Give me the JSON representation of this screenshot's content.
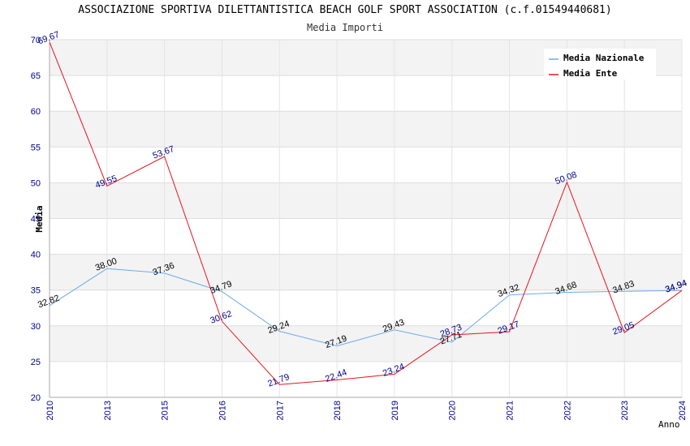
{
  "chart_data": {
    "type": "line",
    "title": "ASSOCIAZIONE SPORTIVA DILETTANTISTICA BEACH GOLF SPORT ASSOCIATION (c.f.01549440681)",
    "subtitle": "Media Importi",
    "xlabel": "Anno",
    "ylabel": "Media",
    "ylim": [
      20,
      70
    ],
    "yticks": [
      "20",
      "25",
      "30",
      "35",
      "40",
      "45",
      "50",
      "55",
      "60",
      "65",
      "70"
    ],
    "categories": [
      "2010",
      "2013",
      "2015",
      "2016",
      "2017",
      "2018",
      "2019",
      "2020",
      "2021",
      "2022",
      "2023",
      "2024"
    ],
    "grid": true,
    "legend_position": "top-right",
    "series": [
      {
        "name": "Media Nazionale",
        "color": "#6aaaee",
        "values": [
          32.82,
          38.0,
          37.36,
          34.79,
          29.24,
          27.19,
          29.43,
          27.71,
          34.32,
          34.68,
          34.83,
          34.94
        ],
        "labels": [
          "32.82",
          "38.00",
          "37.36",
          "34.79",
          "29.24",
          "27.19",
          "29.43",
          "27.71",
          "34.32",
          "34.68",
          "34.83",
          "34.94"
        ]
      },
      {
        "name": "Media Ente",
        "color": "#e8141e",
        "values": [
          69.67,
          49.55,
          53.67,
          30.62,
          21.79,
          22.44,
          23.24,
          28.73,
          29.17,
          50.08,
          29.05,
          34.94
        ],
        "labels": [
          "69.67",
          "49.55",
          "53.67",
          "30.62",
          "21.79",
          "22.44",
          "23.24",
          "28.73",
          "29.17",
          "50.08",
          "29.05",
          "34.94"
        ]
      }
    ]
  }
}
